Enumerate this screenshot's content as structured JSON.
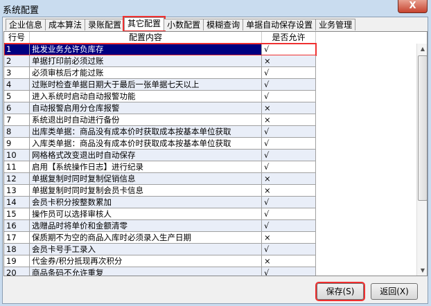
{
  "window": {
    "title": "系统配置",
    "close": "X"
  },
  "tabs": [
    {
      "label": "企业信息"
    },
    {
      "label": "成本算法"
    },
    {
      "label": "录账配置"
    },
    {
      "label": "其它配置",
      "active": true
    },
    {
      "label": "小数配置"
    },
    {
      "label": "模糊查询"
    },
    {
      "label": "单据自动保存设置"
    },
    {
      "label": "业务管理"
    }
  ],
  "table": {
    "headers": [
      "行号",
      "配置内容",
      "是否允许"
    ],
    "rows": [
      [
        "1",
        "批发业务允许负库存",
        "√"
      ],
      [
        "2",
        "单据打印前必须过账",
        "×"
      ],
      [
        "3",
        "必须审核后才能过账",
        "√"
      ],
      [
        "4",
        "过账时检查单据日期大于最后一张单据七天以上",
        "√"
      ],
      [
        "5",
        "进入系统时启动自动报警功能",
        "√"
      ],
      [
        "6",
        "自动报警启用分仓库报警",
        "×"
      ],
      [
        "7",
        "系统退出时自动进行备份",
        "×"
      ],
      [
        "8",
        "出库类单据：商品没有成本价时获取成本按基本单位获取",
        "√"
      ],
      [
        "9",
        "入库类单据：商品没有成本价时获取成本按基本单位获取",
        "√"
      ],
      [
        "10",
        "网格格式改变退出时自动保存",
        "√"
      ],
      [
        "11",
        "启用【系统操作日志】进行纪录",
        "√"
      ],
      [
        "12",
        "单据复制时同时复制促销信息",
        "×"
      ],
      [
        "13",
        "单据复制时同时复制会员卡信息",
        "×"
      ],
      [
        "14",
        "会员卡积分按整数累加",
        "√"
      ],
      [
        "15",
        "操作员可以选择审核人",
        "√"
      ],
      [
        "16",
        "选赠品时将单价和金额清零",
        "√"
      ],
      [
        "17",
        "保质期不为空的商品入库时必须录入生产日期",
        "×"
      ],
      [
        "18",
        "会员卡号手工录入",
        "√"
      ],
      [
        "19",
        "代金券/积分抵现再次积分",
        "×"
      ],
      [
        "20",
        "商品条码不允许重复",
        "√"
      ]
    ]
  },
  "buttons": {
    "save": "保存(S)",
    "back": "返回(X)"
  }
}
